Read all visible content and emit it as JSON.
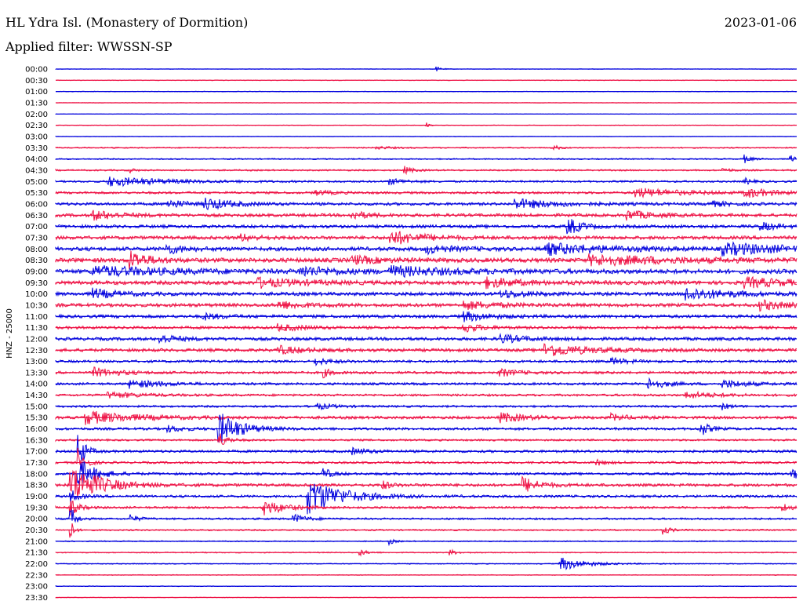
{
  "header": {
    "station": "HL Ydra Isl. (Monastery of Dormition)",
    "date": "2023-01-06",
    "filter": "Applied filter: WWSSN-SP"
  },
  "chart_data": {
    "type": "line",
    "title": "HL Ydra Isl. (Monastery of Dormition)",
    "ylabel": "HNZ - 25000",
    "colors": {
      "odd_trace": "#0000dd",
      "even_trace": "#ee1144"
    },
    "grid": false,
    "rows": [
      {
        "label": "00:00",
        "noise": 0.3,
        "events": [
          [
            0.514,
            3,
            6
          ]
        ]
      },
      {
        "label": "00:30",
        "noise": 0.4,
        "events": []
      },
      {
        "label": "01:00",
        "noise": 0.4,
        "events": []
      },
      {
        "label": "01:30",
        "noise": 0.3,
        "events": []
      },
      {
        "label": "02:00",
        "noise": 0.3,
        "events": []
      },
      {
        "label": "02:30",
        "noise": 0.4,
        "events": [
          [
            0.5,
            4,
            4
          ]
        ]
      },
      {
        "label": "03:00",
        "noise": 0.3,
        "events": []
      },
      {
        "label": "03:30",
        "noise": 0.8,
        "events": [
          [
            0.67,
            4,
            8
          ],
          [
            0.43,
            2,
            20
          ]
        ]
      },
      {
        "label": "04:00",
        "noise": 0.8,
        "events": [
          [
            0.93,
            5,
            8
          ],
          [
            0.99,
            6,
            6
          ]
        ]
      },
      {
        "label": "04:30",
        "noise": 1.0,
        "events": [
          [
            0.47,
            5,
            10
          ],
          [
            0.9,
            3,
            10
          ],
          [
            0.1,
            3,
            6
          ]
        ]
      },
      {
        "label": "05:00",
        "noise": 1.2,
        "events": [
          [
            0.07,
            6,
            70
          ],
          [
            0.45,
            4,
            20
          ],
          [
            0.93,
            4,
            10
          ]
        ]
      },
      {
        "label": "05:30",
        "noise": 1.5,
        "events": [
          [
            0.78,
            6,
            55
          ],
          [
            0.93,
            6,
            30
          ],
          [
            0.35,
            3,
            20
          ]
        ]
      },
      {
        "label": "06:00",
        "noise": 1.8,
        "events": [
          [
            0.62,
            6,
            50
          ],
          [
            0.15,
            6,
            20
          ],
          [
            0.2,
            8,
            30
          ],
          [
            0.88,
            4,
            20
          ]
        ]
      },
      {
        "label": "06:30",
        "noise": 2.0,
        "events": [
          [
            0.05,
            6,
            30
          ],
          [
            0.77,
            6,
            30
          ],
          [
            0.4,
            5,
            20
          ]
        ]
      },
      {
        "label": "07:00",
        "noise": 2.0,
        "events": [
          [
            0.69,
            12,
            15
          ],
          [
            0.95,
            5,
            20
          ]
        ]
      },
      {
        "label": "07:30",
        "noise": 2.2,
        "events": [
          [
            0.45,
            9,
            40
          ],
          [
            0.25,
            4,
            20
          ]
        ]
      },
      {
        "label": "08:00",
        "noise": 2.5,
        "events": [
          [
            0.66,
            7,
            70
          ],
          [
            0.9,
            7,
            80
          ],
          [
            0.15,
            6,
            20
          ],
          [
            0.5,
            5,
            30
          ]
        ]
      },
      {
        "label": "08:30",
        "noise": 2.8,
        "events": [
          [
            0.1,
            12,
            20
          ],
          [
            0.72,
            6,
            100
          ],
          [
            0.4,
            5,
            30
          ]
        ]
      },
      {
        "label": "09:00",
        "noise": 2.8,
        "events": [
          [
            0.05,
            6,
            90
          ],
          [
            0.45,
            6,
            70
          ],
          [
            0.33,
            6,
            40
          ]
        ]
      },
      {
        "label": "09:30",
        "noise": 2.5,
        "events": [
          [
            0.27,
            6,
            50
          ],
          [
            0.58,
            6,
            40
          ],
          [
            0.93,
            6,
            50
          ]
        ]
      },
      {
        "label": "10:00",
        "noise": 2.2,
        "events": [
          [
            0.05,
            6,
            30
          ],
          [
            0.85,
            8,
            50
          ],
          [
            0.6,
            5,
            30
          ]
        ]
      },
      {
        "label": "10:30",
        "noise": 2.2,
        "events": [
          [
            0.3,
            5,
            30
          ],
          [
            0.55,
            5,
            40
          ],
          [
            0.95,
            6,
            30
          ]
        ]
      },
      {
        "label": "11:00",
        "noise": 2.0,
        "events": [
          [
            0.55,
            6,
            30
          ],
          [
            0.2,
            4,
            20
          ]
        ]
      },
      {
        "label": "11:30",
        "noise": 1.8,
        "events": [
          [
            0.3,
            4,
            30
          ],
          [
            0.55,
            6,
            20
          ]
        ]
      },
      {
        "label": "12:00",
        "noise": 2.0,
        "events": [
          [
            0.14,
            6,
            20
          ],
          [
            0.6,
            5,
            30
          ]
        ]
      },
      {
        "label": "12:30",
        "noise": 2.0,
        "events": [
          [
            0.66,
            8,
            50
          ],
          [
            0.3,
            5,
            30
          ]
        ]
      },
      {
        "label": "13:00",
        "noise": 1.6,
        "events": [
          [
            0.35,
            4,
            20
          ],
          [
            0.75,
            4,
            20
          ]
        ]
      },
      {
        "label": "13:30",
        "noise": 1.6,
        "events": [
          [
            0.05,
            6,
            30
          ],
          [
            0.36,
            6,
            10
          ],
          [
            0.6,
            5,
            20
          ]
        ]
      },
      {
        "label": "14:00",
        "noise": 1.5,
        "events": [
          [
            0.1,
            5,
            40
          ],
          [
            0.8,
            7,
            20
          ],
          [
            0.9,
            5,
            30
          ]
        ]
      },
      {
        "label": "14:30",
        "noise": 1.4,
        "events": [
          [
            0.07,
            4,
            40
          ],
          [
            0.85,
            4,
            40
          ]
        ]
      },
      {
        "label": "15:00",
        "noise": 1.3,
        "events": [
          [
            0.35,
            4,
            20
          ],
          [
            0.9,
            4,
            10
          ]
        ]
      },
      {
        "label": "15:30",
        "noise": 1.8,
        "events": [
          [
            0.04,
            8,
            60
          ],
          [
            0.6,
            6,
            30
          ],
          [
            0.75,
            4,
            20
          ]
        ]
      },
      {
        "label": "16:00",
        "noise": 1.6,
        "events": [
          [
            0.22,
            22,
            25
          ],
          [
            0.87,
            10,
            10
          ],
          [
            0.15,
            4,
            20
          ]
        ]
      },
      {
        "label": "16:30",
        "noise": 1.2,
        "events": [
          [
            0.22,
            10,
            10
          ]
        ]
      },
      {
        "label": "17:00",
        "noise": 1.6,
        "events": [
          [
            0.03,
            26,
            8
          ],
          [
            0.4,
            4,
            20
          ]
        ]
      },
      {
        "label": "17:30",
        "noise": 1.4,
        "events": [
          [
            0.03,
            18,
            8
          ],
          [
            0.73,
            4,
            10
          ]
        ]
      },
      {
        "label": "18:00",
        "noise": 1.5,
        "events": [
          [
            0.03,
            20,
            20
          ],
          [
            0.36,
            8,
            10
          ],
          [
            0.99,
            10,
            10
          ]
        ]
      },
      {
        "label": "18:30",
        "noise": 1.8,
        "events": [
          [
            0.02,
            26,
            35
          ],
          [
            0.63,
            10,
            20
          ],
          [
            0.44,
            6,
            10
          ]
        ]
      },
      {
        "label": "19:00",
        "noise": 1.6,
        "events": [
          [
            0.34,
            24,
            40
          ],
          [
            0.02,
            8,
            10
          ]
        ]
      },
      {
        "label": "19:30",
        "noise": 1.4,
        "events": [
          [
            0.28,
            10,
            25
          ],
          [
            0.02,
            10,
            10
          ],
          [
            0.98,
            6,
            10
          ]
        ]
      },
      {
        "label": "20:00",
        "noise": 1.2,
        "events": [
          [
            0.02,
            18,
            6
          ],
          [
            0.1,
            5,
            10
          ],
          [
            0.32,
            6,
            15
          ]
        ]
      },
      {
        "label": "20:30",
        "noise": 0.9,
        "events": [
          [
            0.02,
            14,
            4
          ],
          [
            0.82,
            5,
            10
          ]
        ]
      },
      {
        "label": "21:00",
        "noise": 0.7,
        "events": [
          [
            0.45,
            4,
            6
          ]
        ]
      },
      {
        "label": "21:30",
        "noise": 0.7,
        "events": [
          [
            0.41,
            4,
            10
          ],
          [
            0.53,
            4,
            10
          ]
        ]
      },
      {
        "label": "22:00",
        "noise": 0.6,
        "events": [
          [
            0.68,
            9,
            30
          ]
        ]
      },
      {
        "label": "22:30",
        "noise": 0.5,
        "events": []
      },
      {
        "label": "23:00",
        "noise": 0.4,
        "events": []
      },
      {
        "label": "23:30",
        "noise": 0.3,
        "events": []
      }
    ]
  }
}
